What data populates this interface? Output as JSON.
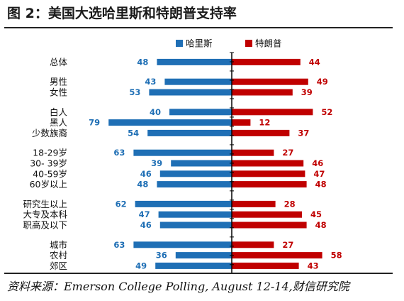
{
  "title": "图 2：美国大选哈里斯和特朗普支持率",
  "source": "资料来源：Emerson College Polling, August 12-14,财信研究院",
  "colors": {
    "harris": "#1f6fb5",
    "trump": "#c00000",
    "text": "#111111"
  },
  "chart_data": {
    "type": "bar",
    "orientation": "horizontal-diverging",
    "legend_position": "top-center",
    "grid": false,
    "groups": [
      [
        "总体"
      ],
      [
        "男性",
        "女性"
      ],
      [
        "白人",
        "黑人",
        "少数族裔"
      ],
      [
        "18-29岁",
        "30- 39岁",
        "40-59岁",
        "60岁以上"
      ],
      [
        "研究生以上",
        "大专及本科",
        "职高及以下"
      ],
      [
        "城市",
        "农村",
        "郊区"
      ]
    ],
    "categories": [
      "总体",
      "男性",
      "女性",
      "白人",
      "黑人",
      "少数族裔",
      "18-29岁",
      "30- 39岁",
      "40-59岁",
      "60岁以上",
      "研究生以上",
      "大专及本科",
      "职高及以下",
      "城市",
      "农村",
      "郊区"
    ],
    "series": [
      {
        "name": "哈里斯",
        "values": [
          48,
          43,
          53,
          40,
          79,
          54,
          63,
          39,
          46,
          48,
          62,
          47,
          46,
          63,
          36,
          49
        ]
      },
      {
        "name": "特朗普",
        "values": [
          44,
          49,
          39,
          52,
          12,
          37,
          27,
          46,
          47,
          48,
          28,
          45,
          48,
          27,
          58,
          43
        ]
      }
    ]
  }
}
